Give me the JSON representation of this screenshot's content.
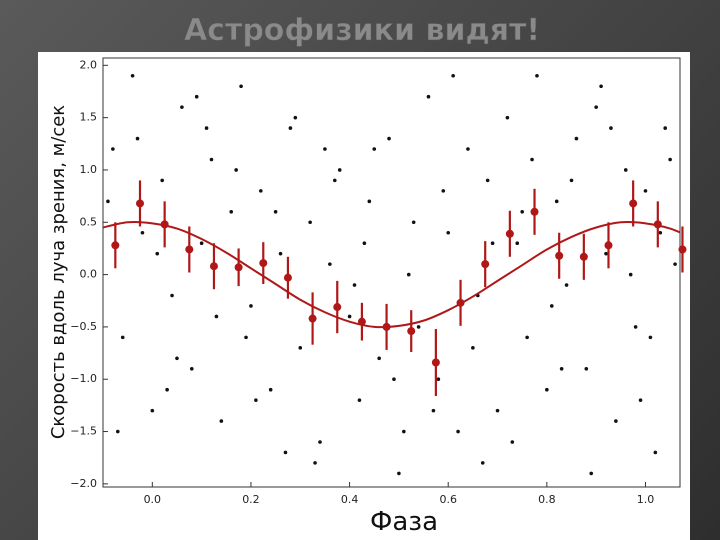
{
  "slide": {
    "title": "Астрофизики видят!"
  },
  "chart_data": {
    "type": "scatter",
    "x_label": "Фаза",
    "y_label": "Скорость вдоль луча зрения, м/сек",
    "xlim": [
      -0.1,
      1.07
    ],
    "ylim": [
      -2.03,
      2.07
    ],
    "xticks": [
      {
        "value": 0,
        "label": "0.0"
      },
      0.2,
      0.4,
      0.6,
      0.8,
      {
        "value": 1,
        "label": "1.0"
      }
    ],
    "yticks": [
      {
        "value": -2,
        "label": "−2.0"
      },
      {
        "value": -1.5,
        "label": "−1.5"
      },
      {
        "value": -1,
        "label": "−1.0"
      },
      {
        "value": -0.5,
        "label": "−0.5"
      },
      {
        "value": 0,
        "label": "0.0"
      },
      {
        "value": 0.5,
        "label": "0.5"
      },
      {
        "value": 1,
        "label": "1.0"
      },
      {
        "value": 1.5,
        "label": "1.5"
      },
      {
        "value": 2,
        "label": "2.0"
      }
    ],
    "grid": false,
    "series": [
      {
        "type": "scatter",
        "color": "#111111",
        "x": [
          -0.08,
          -0.06,
          -0.04,
          -0.02,
          0.0,
          0.02,
          0.04,
          0.06,
          0.08,
          0.1,
          0.12,
          0.14,
          0.16,
          0.18,
          0.2,
          0.22,
          0.24,
          0.26,
          0.28,
          0.3,
          0.32,
          0.34,
          0.36,
          0.38,
          0.4,
          0.42,
          0.44,
          0.46,
          0.48,
          0.5,
          0.52,
          0.54,
          0.56,
          0.58,
          0.6,
          0.62,
          0.64,
          0.66,
          0.68,
          0.7,
          0.72,
          0.74,
          0.76,
          0.78,
          0.8,
          0.82,
          0.84,
          0.86,
          0.88,
          0.9,
          0.92,
          0.94,
          0.96,
          0.98,
          1.0,
          1.02,
          1.04,
          1.06,
          -0.07,
          -0.03,
          0.01,
          0.05,
          0.09,
          0.13,
          0.17,
          0.21,
          0.25,
          0.29,
          0.33,
          0.37,
          0.41,
          0.45,
          0.49,
          0.53,
          0.57,
          0.61,
          0.65,
          0.69,
          0.73,
          0.77,
          0.81,
          0.85,
          0.89,
          0.93,
          0.97,
          1.01,
          1.05,
          -0.09,
          0.03,
          0.11,
          0.19,
          0.27,
          0.35,
          0.43,
          0.51,
          0.59,
          0.67,
          0.75,
          0.83,
          0.91,
          0.99,
          1.03
        ],
        "values": [
          1.2,
          -0.6,
          1.9,
          0.4,
          -1.3,
          0.9,
          -0.2,
          1.6,
          -0.9,
          0.3,
          1.1,
          -1.4,
          0.6,
          1.8,
          -0.3,
          0.8,
          -1.1,
          0.2,
          1.4,
          -0.7,
          0.5,
          -1.6,
          0.1,
          1.0,
          -0.4,
          -1.2,
          0.7,
          -0.8,
          1.3,
          -1.9,
          0.0,
          -0.5,
          1.7,
          -1.0,
          0.4,
          -1.5,
          1.2,
          -0.2,
          0.9,
          -1.3,
          1.5,
          0.3,
          -0.6,
          1.9,
          -1.1,
          0.7,
          -0.1,
          1.3,
          -0.9,
          1.6,
          0.2,
          -1.4,
          1.0,
          -0.5,
          0.8,
          -1.7,
          1.4,
          0.1,
          -1.5,
          1.3,
          0.2,
          -0.8,
          1.7,
          -0.4,
          1.0,
          -1.2,
          0.6,
          1.5,
          -1.8,
          0.9,
          -0.1,
          1.2,
          -1.0,
          0.5,
          -1.3,
          1.9,
          -0.7,
          0.3,
          -1.6,
          1.1,
          -0.3,
          0.9,
          -1.9,
          1.4,
          0.0,
          -0.6,
          1.1,
          0.7,
          -1.1,
          1.4,
          -0.6,
          -1.7,
          1.2,
          0.3,
          -1.5,
          0.8,
          -1.8,
          0.6,
          -0.9,
          1.8,
          -1.2,
          0.4
        ]
      },
      {
        "type": "errorbar",
        "color": "#b01818",
        "x": [
          -0.075,
          -0.025,
          0.025,
          0.075,
          0.125,
          0.175,
          0.225,
          0.275,
          0.325,
          0.375,
          0.425,
          0.475,
          0.525,
          0.575,
          0.625,
          0.675,
          0.725,
          0.775,
          0.825,
          0.875,
          0.925,
          0.975,
          1.025,
          1.075
        ],
        "values": [
          0.28,
          0.68,
          0.48,
          0.24,
          0.08,
          0.07,
          0.11,
          -0.03,
          -0.42,
          -0.31,
          -0.45,
          -0.5,
          -0.54,
          -0.84,
          -0.27,
          0.1,
          0.39,
          0.6,
          0.18,
          0.17,
          0.28,
          0.68,
          0.48,
          0.24
        ],
        "errors": [
          0.22,
          0.22,
          0.22,
          0.22,
          0.22,
          0.18,
          0.2,
          0.2,
          0.25,
          0.25,
          0.18,
          0.22,
          0.2,
          0.32,
          0.22,
          0.22,
          0.22,
          0.22,
          0.22,
          0.22,
          0.22,
          0.22,
          0.22,
          0.22
        ]
      },
      {
        "type": "line",
        "color": "#b01818",
        "x": [
          -0.1,
          -0.05,
          0.0,
          0.05,
          0.1,
          0.15,
          0.2,
          0.25,
          0.3,
          0.35,
          0.4,
          0.45,
          0.5,
          0.55,
          0.6,
          0.65,
          0.7,
          0.75,
          0.8,
          0.85,
          0.9,
          0.95,
          1.0,
          1.05,
          1.1
        ],
        "values": [
          0.45,
          0.5,
          0.49,
          0.44,
          0.34,
          0.21,
          0.06,
          -0.09,
          -0.24,
          -0.36,
          -0.45,
          -0.5,
          -0.49,
          -0.44,
          -0.34,
          -0.21,
          -0.06,
          0.09,
          0.24,
          0.36,
          0.45,
          0.5,
          0.49,
          0.44,
          0.34
        ]
      }
    ]
  }
}
